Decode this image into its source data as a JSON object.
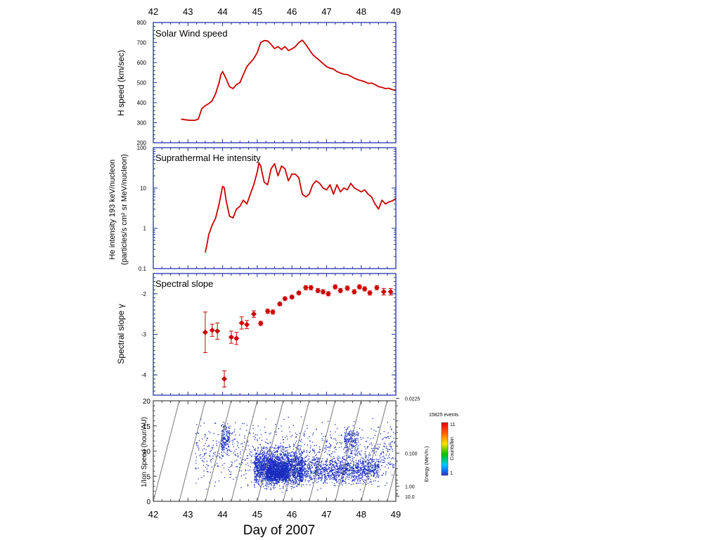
{
  "figure": {
    "xlabel": "Day of 2007",
    "x_ticks": [
      42,
      43,
      44,
      45,
      46,
      47,
      48,
      49
    ],
    "xlim": [
      42,
      49
    ]
  },
  "chart_data": [
    {
      "type": "line",
      "title": "Solar Wind speed",
      "ylabel": "H speed (km/sec)",
      "ylim": [
        200,
        800
      ],
      "y_ticks": [
        200,
        300,
        400,
        500,
        600,
        700,
        800
      ],
      "color": "#cc0000",
      "series": [
        {
          "x": [
            42.8,
            42.9,
            43.0,
            43.1,
            43.2,
            43.3,
            43.4,
            43.5,
            43.6,
            43.7,
            43.8,
            43.9,
            43.95,
            44.0,
            44.1,
            44.2,
            44.3,
            44.4,
            44.5,
            44.6,
            44.7,
            44.8,
            44.9,
            45.0,
            45.1,
            45.2,
            45.3,
            45.4,
            45.5,
            45.6,
            45.7,
            45.8,
            45.9,
            46.0,
            46.1,
            46.2,
            46.3,
            46.4,
            46.5,
            46.6,
            46.7,
            46.8,
            46.9,
            47.0,
            47.1,
            47.2,
            47.3,
            47.4,
            47.5,
            47.6,
            47.7,
            47.8,
            47.9,
            48.0,
            48.1,
            48.2,
            48.3,
            48.4,
            48.5,
            48.6,
            48.7,
            48.8,
            48.9,
            49.0
          ],
          "y": [
            318,
            315,
            313,
            312,
            312,
            318,
            370,
            385,
            395,
            410,
            445,
            500,
            540,
            555,
            520,
            480,
            470,
            490,
            500,
            540,
            580,
            600,
            620,
            650,
            700,
            710,
            708,
            690,
            670,
            680,
            665,
            680,
            660,
            668,
            680,
            700,
            712,
            690,
            665,
            640,
            625,
            610,
            595,
            580,
            572,
            568,
            555,
            548,
            542,
            540,
            532,
            522,
            515,
            510,
            505,
            496,
            498,
            490,
            480,
            476,
            470,
            472,
            465,
            462
          ]
        }
      ]
    },
    {
      "type": "line",
      "title": "Suprathermal He intensity",
      "ylabel": "He intensity 193 keV/nucleon",
      "ylabel2": "(particles/s cm² sr MeV/nucleon)",
      "yscale": "log",
      "ylim": [
        0.1,
        100
      ],
      "y_ticks": [
        0.1,
        1,
        10,
        100
      ],
      "color": "#cc0000",
      "series": [
        {
          "x": [
            43.5,
            43.55,
            43.6,
            43.7,
            43.8,
            43.9,
            44.0,
            44.05,
            44.1,
            44.2,
            44.3,
            44.4,
            44.5,
            44.6,
            44.7,
            44.8,
            44.9,
            45.0,
            45.05,
            45.1,
            45.2,
            45.3,
            45.4,
            45.5,
            45.6,
            45.7,
            45.8,
            45.9,
            46.0,
            46.1,
            46.2,
            46.3,
            46.4,
            46.5,
            46.6,
            46.7,
            46.8,
            46.9,
            47.0,
            47.1,
            47.2,
            47.3,
            47.4,
            47.5,
            47.6,
            47.7,
            47.8,
            47.9,
            48.0,
            48.1,
            48.2,
            48.3,
            48.4,
            48.5,
            48.6,
            48.7,
            48.8,
            48.9,
            49.0
          ],
          "y": [
            0.25,
            0.4,
            0.7,
            1.2,
            1.8,
            4,
            11,
            10,
            5,
            2,
            1.8,
            3,
            3.5,
            5,
            4,
            7,
            12,
            25,
            42,
            35,
            14,
            12,
            30,
            40,
            20,
            35,
            30,
            15,
            22,
            22,
            18,
            7,
            6,
            7,
            12,
            15,
            13,
            10,
            9,
            12,
            7,
            12,
            8,
            10,
            9,
            13,
            10,
            9,
            8,
            9,
            7,
            6,
            4,
            3,
            5,
            4,
            4.5,
            4.8,
            5.5
          ]
        }
      ]
    },
    {
      "type": "scatter",
      "title": "Spectral slope",
      "ylabel": "Spectral slope γ",
      "ylim": [
        -4.5,
        -1.5
      ],
      "y_ticks": [
        -2,
        -3,
        -4
      ],
      "color": "#cc0000",
      "series": [
        {
          "points": [
            [
              43.5,
              -2.95,
              0.5
            ],
            [
              43.7,
              -2.9,
              0.15
            ],
            [
              43.85,
              -2.92,
              0.2
            ],
            [
              44.05,
              -4.1,
              0.2
            ],
            [
              44.25,
              -3.07,
              0.15
            ],
            [
              44.4,
              -3.1,
              0.15
            ],
            [
              44.55,
              -2.72,
              0.15
            ],
            [
              44.7,
              -2.76,
              0.1
            ],
            [
              44.9,
              -2.5,
              0.08
            ],
            [
              45.1,
              -2.73,
              0.05
            ],
            [
              45.3,
              -2.43,
              0.05
            ],
            [
              45.45,
              -2.45,
              0.05
            ],
            [
              45.65,
              -2.25,
              0.04
            ],
            [
              45.8,
              -2.12,
              0.04
            ],
            [
              46.0,
              -2.08,
              0.04
            ],
            [
              46.2,
              -1.98,
              0.04
            ],
            [
              46.4,
              -1.85,
              0.05
            ],
            [
              46.55,
              -1.85,
              0.05
            ],
            [
              46.75,
              -1.92,
              0.05
            ],
            [
              46.9,
              -1.95,
              0.05
            ],
            [
              47.05,
              -2.0,
              0.05
            ],
            [
              47.25,
              -1.83,
              0.05
            ],
            [
              47.4,
              -1.92,
              0.05
            ],
            [
              47.6,
              -1.86,
              0.05
            ],
            [
              47.8,
              -1.95,
              0.05
            ],
            [
              47.95,
              -1.83,
              0.05
            ],
            [
              48.1,
              -1.88,
              0.05
            ],
            [
              48.25,
              -1.98,
              0.05
            ],
            [
              48.45,
              -1.85,
              0.05
            ],
            [
              48.65,
              -1.95,
              0.08
            ],
            [
              48.85,
              -1.95,
              0.08
            ]
          ]
        }
      ]
    },
    {
      "type": "scatter",
      "ylabel": "1/Ion Speed (hour/AU)",
      "ylim": [
        0,
        20
      ],
      "y_ticks": [
        0,
        5,
        10,
        15,
        20
      ],
      "right_labels": [
        "0.0225",
        "0.100",
        "1.00",
        "10.0"
      ],
      "right_label_values": [
        20.5,
        9.6,
        3.0,
        1.0
      ],
      "right_axis_label": "Energy (MeV/n.)",
      "events_label": "15825 events",
      "colorbar": {
        "label": "Counts/bin",
        "max": "11",
        "min": "1",
        "colors": [
          "#2b2bd0",
          "#00c8ff",
          "#00c000",
          "#ffe000",
          "#ff6000",
          "#e00000"
        ]
      },
      "point_color": "#1a2bbf",
      "dispersion_lines": {
        "slope_hours_per_au_per_day": 26.7,
        "x_intercepts": [
          42.0,
          42.75,
          43.5,
          44.25,
          45.0,
          45.75,
          46.5,
          47.25,
          48.0,
          48.75
        ]
      },
      "density_regions": [
        {
          "x": [
            43.2,
            49.0
          ],
          "y": [
            1,
            18
          ],
          "n": 1000
        },
        {
          "x": [
            43.95,
            44.2
          ],
          "y": [
            8,
            17
          ],
          "n": 160
        },
        {
          "x": [
            44.9,
            46.3
          ],
          "y": [
            1.5,
            12
          ],
          "n": 1900
        },
        {
          "x": [
            45.25,
            45.9
          ],
          "y": [
            3,
            9
          ],
          "n": 900
        },
        {
          "x": [
            46.2,
            48.5
          ],
          "y": [
            2.5,
            10
          ],
          "n": 1100
        },
        {
          "x": [
            47.5,
            47.9
          ],
          "y": [
            8,
            16
          ],
          "n": 180
        }
      ]
    }
  ]
}
